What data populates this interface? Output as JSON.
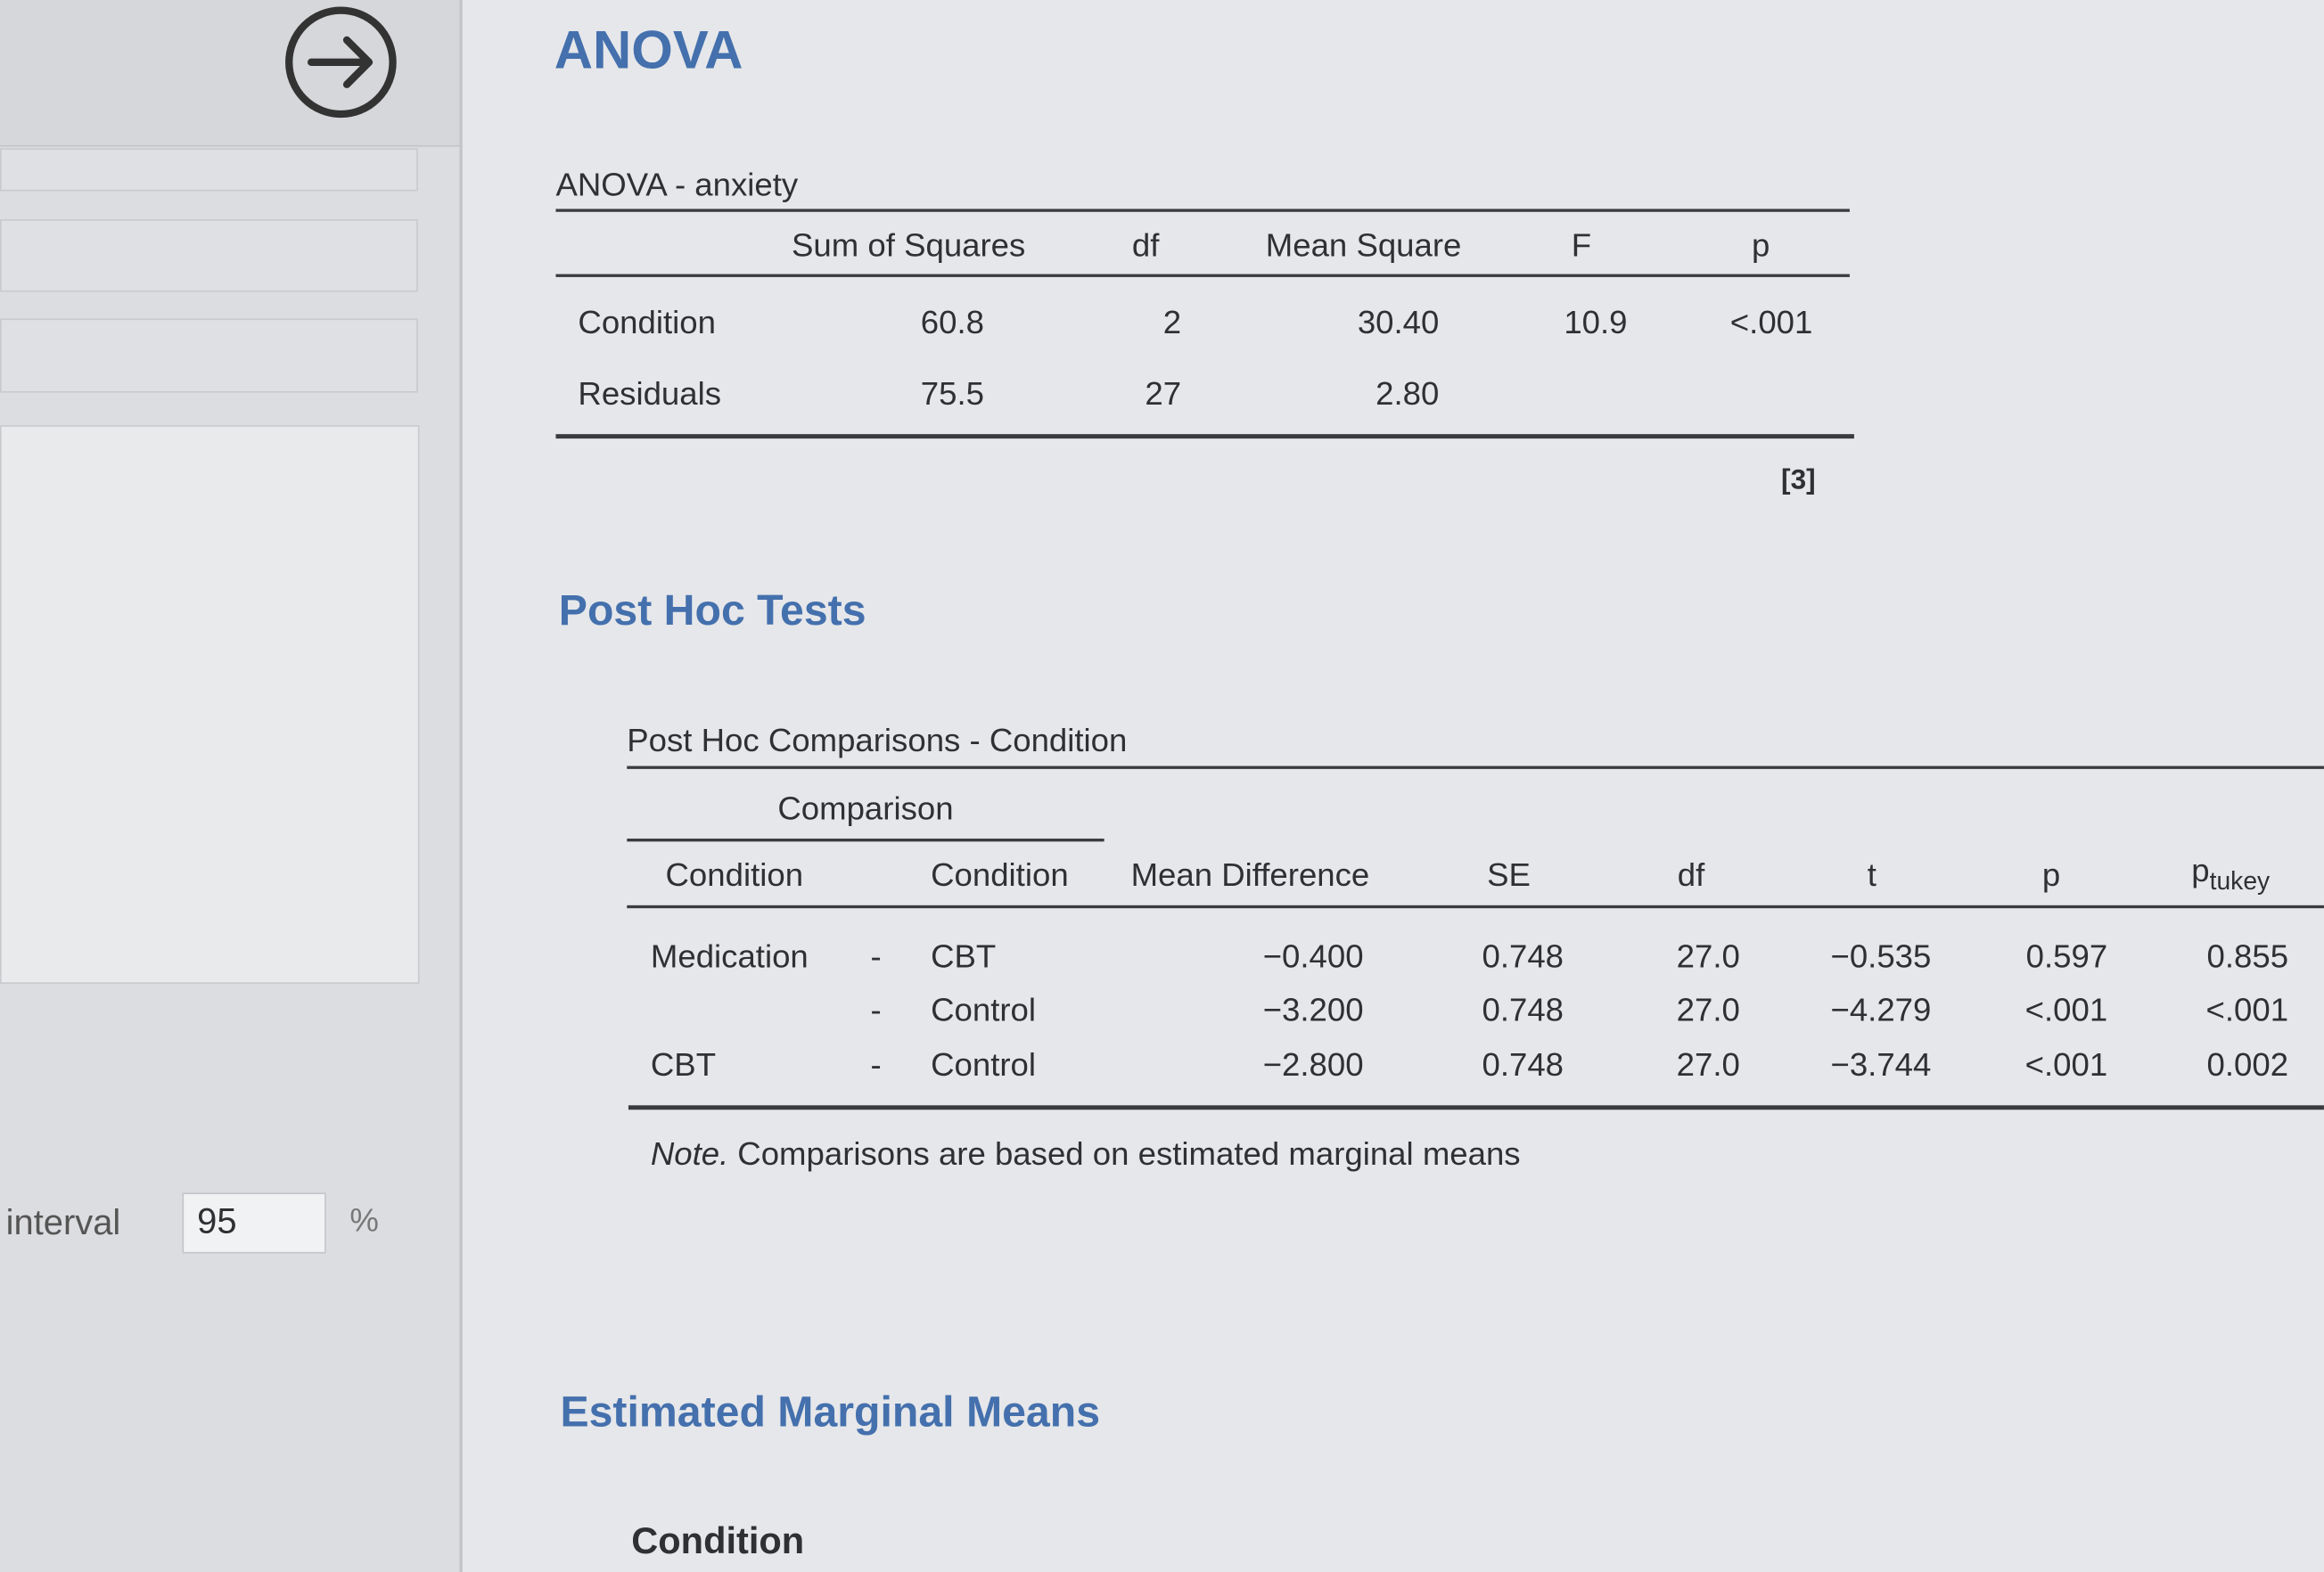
{
  "sidebar": {
    "interval_label": "interval",
    "interval_value": "95",
    "interval_unit": "%"
  },
  "anova": {
    "heading": "ANOVA",
    "table": {
      "title": "ANOVA - anxiety",
      "columns": [
        "Sum of Squares",
        "df",
        "Mean Square",
        "F",
        "p"
      ],
      "rows": [
        {
          "label": "Condition",
          "cells": [
            "60.8",
            "2",
            "30.40",
            "10.9",
            "<.001"
          ]
        },
        {
          "label": "Residuals",
          "cells": [
            "75.5",
            "27",
            "2.80"
          ]
        }
      ],
      "footnote": "[3]"
    }
  },
  "post_hoc": {
    "heading": "Post Hoc Tests",
    "table": {
      "title": "Post Hoc Comparisons - Condition",
      "spanner": "Comparison",
      "columns": [
        "Condition",
        "Condition",
        "Mean Difference",
        "SE",
        "df",
        "t",
        "p",
        {
          "main": "p",
          "sub": "tukey"
        }
      ],
      "rows": [
        {
          "condition_1": "Medication",
          "dash": "-",
          "condition_2": "CBT",
          "cells": [
            "−0.400",
            "0.748",
            "27.0",
            "−0.535",
            "0.597",
            "0.855"
          ]
        },
        {
          "dash": "-",
          "condition_2": "Control",
          "cells": [
            "−3.200",
            "0.748",
            "27.0",
            "−4.279",
            "<.001",
            "<.001"
          ]
        },
        {
          "condition_1": "CBT",
          "dash": "-",
          "condition_2": "Control",
          "cells": [
            "−2.800",
            "0.748",
            "27.0",
            "−3.744",
            "<.001",
            "0.002"
          ]
        }
      ],
      "note_label": "Note.",
      "note": "Comparisons are based on estimated marginal means"
    }
  },
  "emm": {
    "heading": "Estimated Marginal Means",
    "subheading": "Condition"
  }
}
